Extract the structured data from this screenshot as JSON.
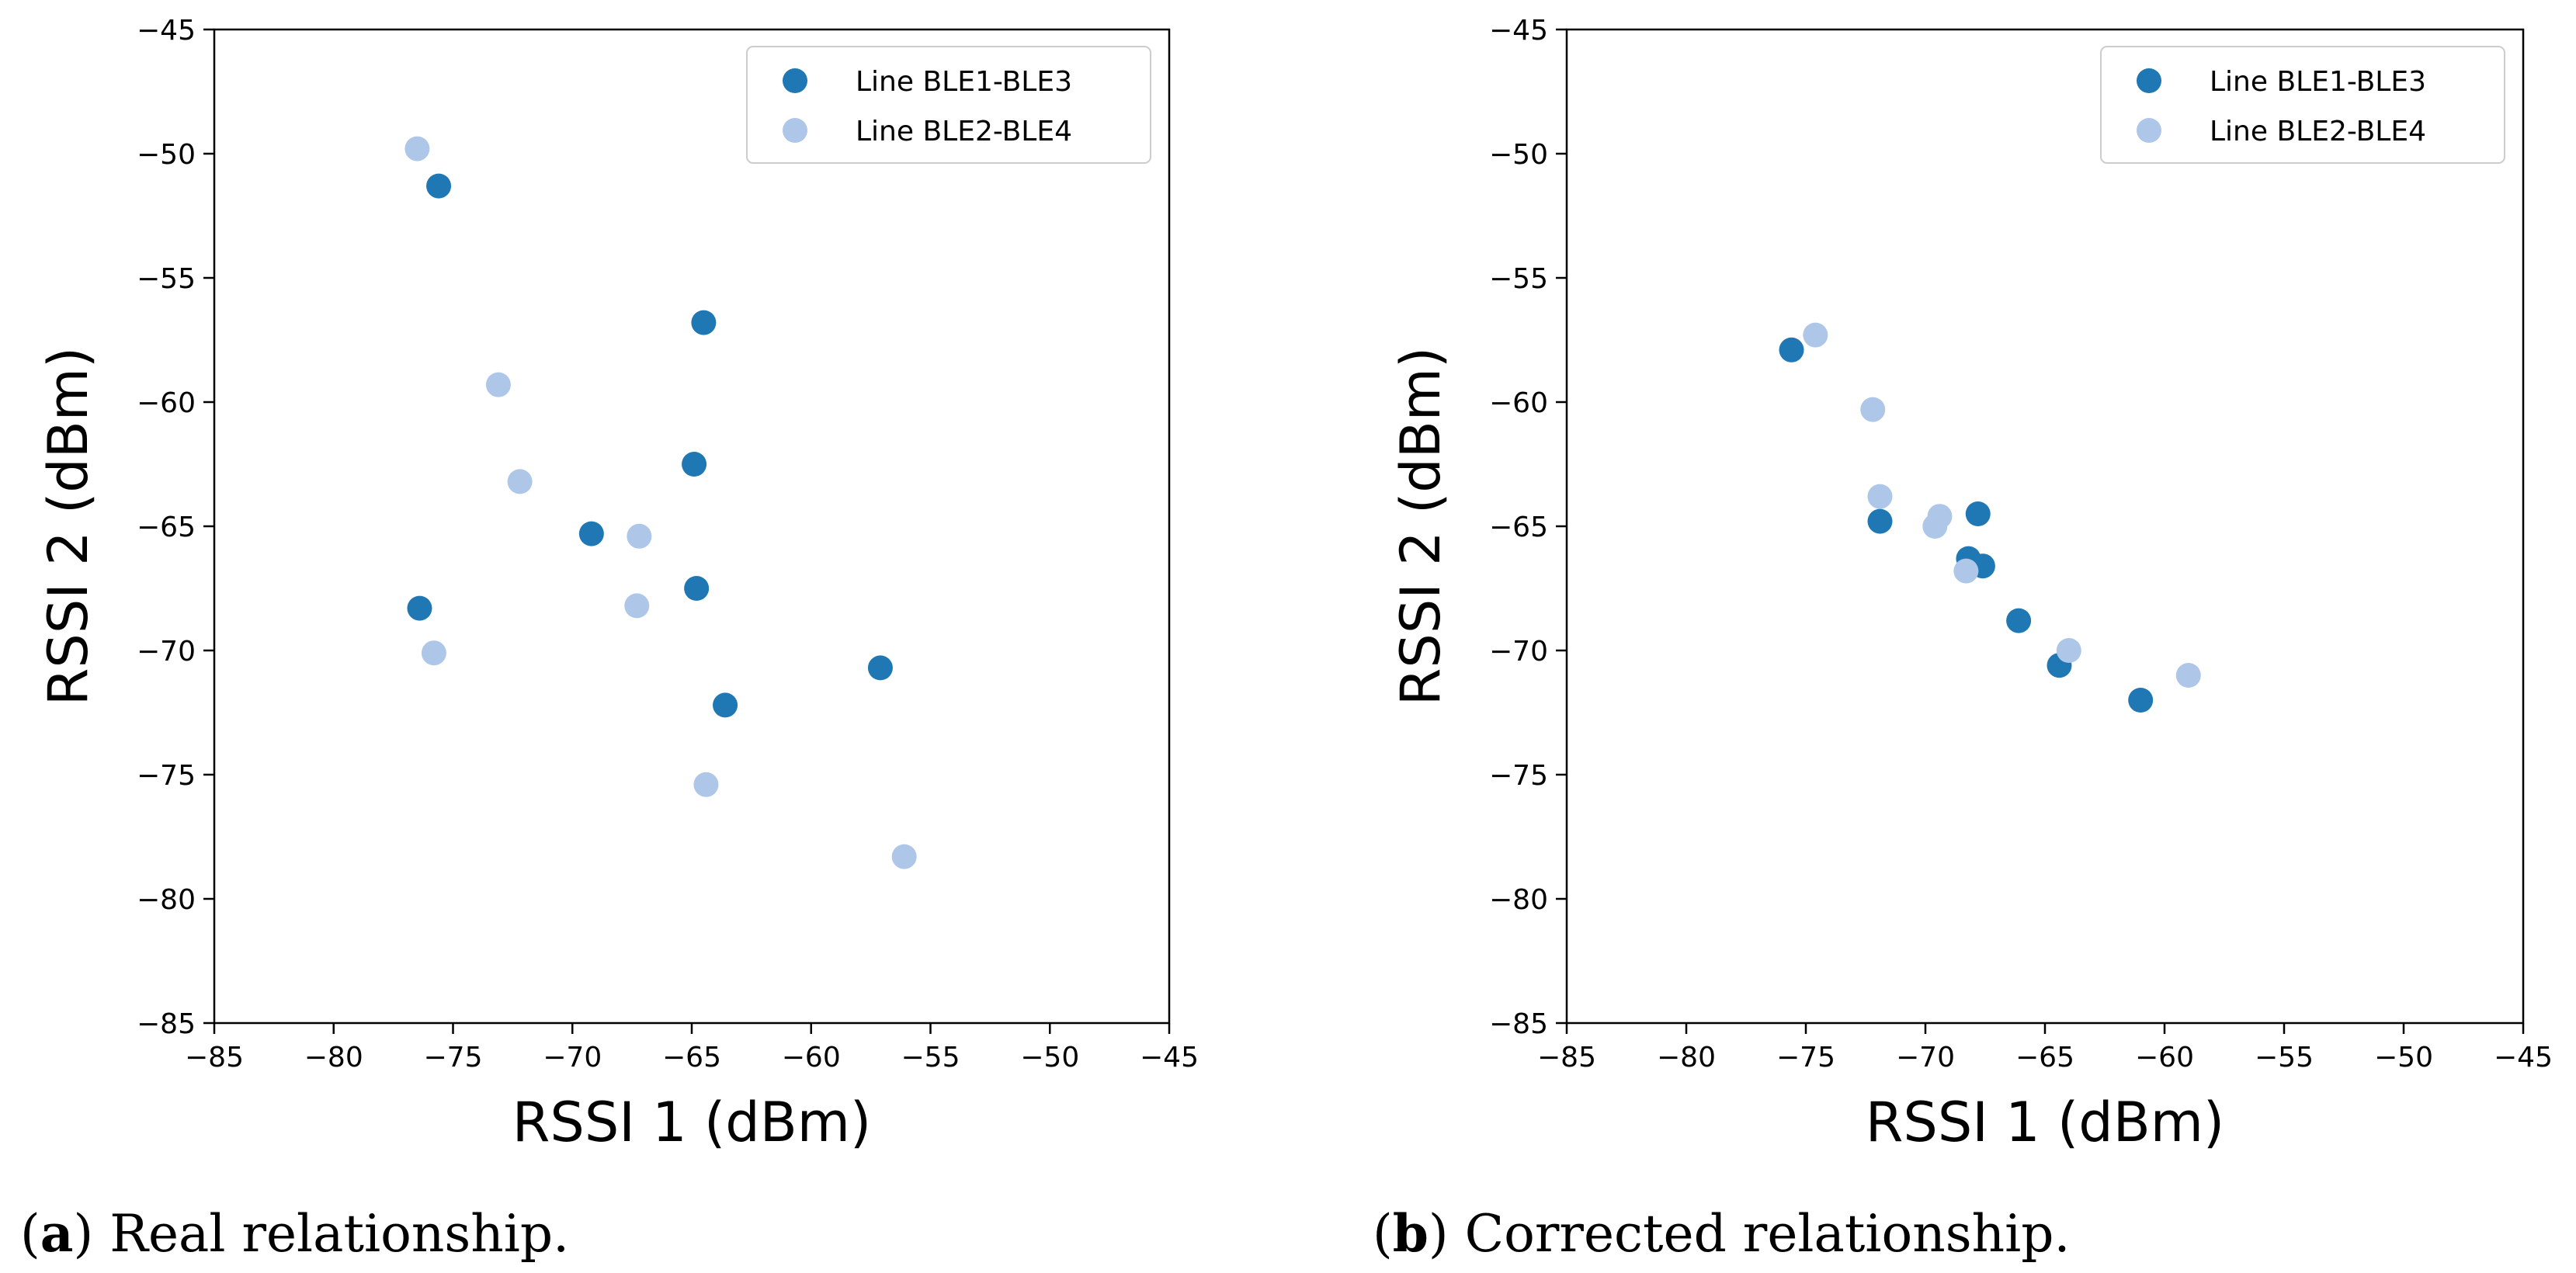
{
  "chart_data": [
    {
      "type": "scatter",
      "panel_label": "a",
      "caption": "Real relationship.",
      "xlabel": "RSSI 1 (dBm)",
      "ylabel": "RSSI 2 (dBm)",
      "xlim": [
        -85,
        -45
      ],
      "ylim": [
        -85,
        -45
      ],
      "xticks": [
        -85,
        -80,
        -75,
        -70,
        -65,
        -60,
        -55,
        -50,
        -45
      ],
      "yticks": [
        -85,
        -80,
        -75,
        -70,
        -65,
        -60,
        -55,
        -50,
        -45
      ],
      "grid": false,
      "legend_position": "top-right",
      "series": [
        {
          "name": "Line BLE1-BLE3",
          "color": "#1f77b4",
          "points": [
            [
              -75.6,
              -51.3
            ],
            [
              -64.5,
              -56.8
            ],
            [
              -64.9,
              -62.5
            ],
            [
              -69.2,
              -65.3
            ],
            [
              -76.4,
              -68.3
            ],
            [
              -64.8,
              -67.5
            ],
            [
              -57.1,
              -70.7
            ],
            [
              -63.6,
              -72.2
            ]
          ]
        },
        {
          "name": "Line BLE2-BLE4",
          "color": "#aec7e8",
          "points": [
            [
              -76.5,
              -49.8
            ],
            [
              -73.1,
              -59.3
            ],
            [
              -72.2,
              -63.2
            ],
            [
              -67.2,
              -65.4
            ],
            [
              -67.3,
              -68.2
            ],
            [
              -75.8,
              -70.1
            ],
            [
              -64.4,
              -75.4
            ],
            [
              -56.1,
              -78.3
            ]
          ]
        }
      ]
    },
    {
      "type": "scatter",
      "panel_label": "b",
      "caption": "Corrected relationship.",
      "xlabel": "RSSI 1 (dBm)",
      "ylabel": "RSSI 2 (dBm)",
      "xlim": [
        -85,
        -45
      ],
      "ylim": [
        -85,
        -45
      ],
      "xticks": [
        -85,
        -80,
        -75,
        -70,
        -65,
        -60,
        -55,
        -50,
        -45
      ],
      "yticks": [
        -85,
        -80,
        -75,
        -70,
        -65,
        -60,
        -55,
        -50,
        -45
      ],
      "grid": false,
      "legend_position": "top-right",
      "series": [
        {
          "name": "Line BLE1-BLE3",
          "color": "#1f77b4",
          "points": [
            [
              -75.6,
              -57.9
            ],
            [
              -71.9,
              -64.8
            ],
            [
              -67.8,
              -64.5
            ],
            [
              -68.2,
              -66.3
            ],
            [
              -67.6,
              -66.6
            ],
            [
              -66.1,
              -68.8
            ],
            [
              -64.4,
              -70.6
            ],
            [
              -61.0,
              -72.0
            ]
          ]
        },
        {
          "name": "Line BLE2-BLE4",
          "color": "#aec7e8",
          "points": [
            [
              -74.6,
              -57.3
            ],
            [
              -72.2,
              -60.3
            ],
            [
              -71.9,
              -63.8
            ],
            [
              -69.4,
              -64.6
            ],
            [
              -69.6,
              -65.0
            ],
            [
              -68.3,
              -66.8
            ],
            [
              -64.0,
              -70.0
            ],
            [
              -59.0,
              -71.0
            ]
          ]
        }
      ]
    }
  ]
}
